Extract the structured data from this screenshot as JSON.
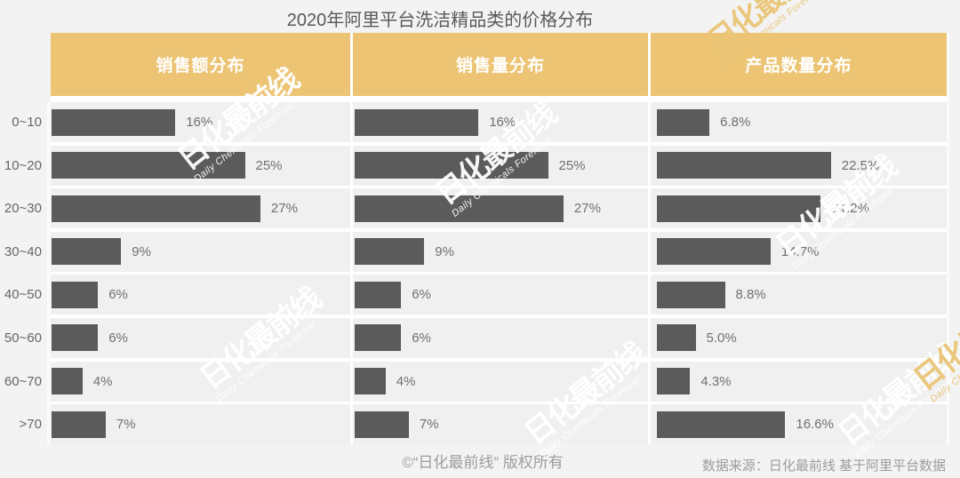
{
  "title": "2020年阿里平台洗洁精品类的价格分布",
  "table": {
    "headers": [
      "销售额分布",
      "销售量分布",
      "产品数量分布"
    ]
  },
  "chart_data": {
    "type": "bar",
    "orientation": "horizontal",
    "title": "2020年阿里平台洗洁精品类的价格分布",
    "categories": [
      "0~10",
      "10~20",
      "20~30",
      "30~40",
      "40~50",
      "50~60",
      "60~70",
      ">70"
    ],
    "series": [
      {
        "name": "销售额分布",
        "values": [
          16,
          25,
          27,
          9,
          6,
          6,
          4,
          7
        ],
        "labels": [
          "16%",
          "25%",
          "27%",
          "9%",
          "6%",
          "6%",
          "4%",
          "7%"
        ]
      },
      {
        "name": "销售量分布",
        "values": [
          16,
          25,
          27,
          9,
          6,
          6,
          4,
          7
        ],
        "labels": [
          "16%",
          "25%",
          "27%",
          "9%",
          "6%",
          "6%",
          "4%",
          "7%"
        ]
      },
      {
        "name": "产品数量分布",
        "values": [
          6.8,
          22.5,
          21.2,
          14.7,
          8.8,
          5.0,
          4.3,
          16.6
        ],
        "labels": [
          "6.8%",
          "22.5%",
          "21.2%",
          "14.7%",
          "8.8%",
          "5.0%",
          "4.3%",
          "16.6%"
        ]
      }
    ],
    "value_unit": "%",
    "xlim": [
      0,
      38
    ],
    "grid": false,
    "legend_position": "none"
  },
  "watermark": {
    "cn": "日化最前线",
    "en": "Daily Chemicals Forefront"
  },
  "footer": {
    "copyright": "©“日化最前线” 版权所有",
    "source": "数据来源：日化最前线 基于阿里平台数据"
  },
  "colors": {
    "accent_gold": "#ECC474",
    "bar": "#5B5B5B",
    "row_bg": "#F0F0F0",
    "page_bg": "#F3F3F3",
    "header_text": "#FFFFFF",
    "title_text": "#595959"
  }
}
